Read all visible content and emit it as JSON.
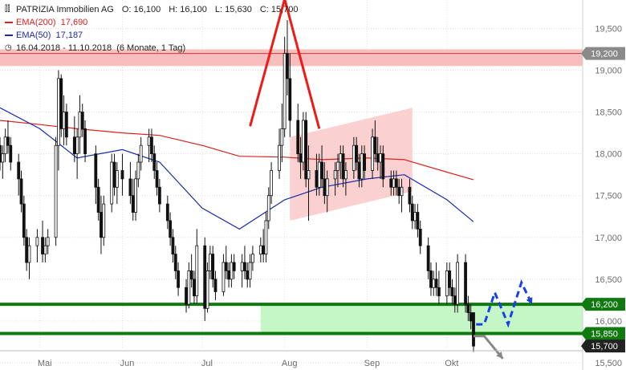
{
  "header": {
    "symbol": "PATRIZIA Immobilien AG",
    "ohlc": [
      {
        "label": "O:",
        "value": "16,100"
      },
      {
        "label": "H:",
        "value": "16,100"
      },
      {
        "label": "L:",
        "value": "15,630"
      },
      {
        "label": "C:",
        "value": "15,700"
      }
    ],
    "range": "16.04.2018 - 11.10.2018",
    "period": "(6 Monate, 1 Tag)"
  },
  "colors": {
    "ema200": "#dd2020",
    "ema50": "#1a2aaa",
    "support_line": "#107a10",
    "support_zone": "#bff5bf",
    "resistance_zone": "#f7b6b6",
    "channel": "#f9c8c8",
    "pattern": "#ee1a1a",
    "forecast_up": "#1740e8",
    "forecast_down": "#888888",
    "label_dark": "#222222",
    "label_green": "#107a10",
    "label_gray": "#8a8a8a"
  },
  "chart_data": {
    "type": "candlestick",
    "title": "PATRIZIA Immobilien AG",
    "x_range": [
      "2018-04-16",
      "2018-10-11"
    ],
    "ylim": [
      15500,
      19800
    ],
    "y_ticks": [
      "15,500",
      "16,000",
      "16,500",
      "17,000",
      "17,500",
      "18,000",
      "18,500",
      "19,000",
      "19,500"
    ],
    "x_labels": [
      {
        "date": "2018-05-01",
        "label": "Mai"
      },
      {
        "date": "2018-06-01",
        "label": "Jun"
      },
      {
        "date": "2018-07-01",
        "label": "Jul"
      },
      {
        "date": "2018-08-01",
        "label": "Aug"
      },
      {
        "date": "2018-09-01",
        "label": "Sep"
      },
      {
        "date": "2018-10-01",
        "label": "Okt"
      }
    ],
    "series": [
      {
        "name": "EMA(200)",
        "value_label": "17,690",
        "key": "ema200",
        "points": [
          [
            "2018-04-16",
            18400
          ],
          [
            "2018-05-01",
            18350
          ],
          [
            "2018-05-15",
            18300
          ],
          [
            "2018-06-01",
            18250
          ],
          [
            "2018-06-15",
            18220
          ],
          [
            "2018-07-01",
            18100
          ],
          [
            "2018-07-15",
            17970
          ],
          [
            "2018-08-01",
            17960
          ],
          [
            "2018-08-15",
            17930
          ],
          [
            "2018-09-01",
            17950
          ],
          [
            "2018-09-15",
            17930
          ],
          [
            "2018-10-01",
            17780
          ],
          [
            "2018-10-11",
            17690
          ]
        ]
      },
      {
        "name": "EMA(50)",
        "value_label": "17,187",
        "key": "ema50",
        "points": [
          [
            "2018-04-16",
            18550
          ],
          [
            "2018-05-01",
            18300
          ],
          [
            "2018-05-15",
            17950
          ],
          [
            "2018-06-01",
            18050
          ],
          [
            "2018-06-15",
            17900
          ],
          [
            "2018-07-01",
            17350
          ],
          [
            "2018-07-15",
            17100
          ],
          [
            "2018-08-01",
            17450
          ],
          [
            "2018-08-15",
            17600
          ],
          [
            "2018-09-01",
            17700
          ],
          [
            "2018-09-15",
            17750
          ],
          [
            "2018-10-01",
            17450
          ],
          [
            "2018-10-11",
            17187
          ]
        ]
      }
    ],
    "candles": [
      [
        "2018-04-16",
        18100,
        18200,
        17800,
        17900
      ],
      [
        "2018-04-17",
        17900,
        18100,
        17700,
        18000
      ],
      [
        "2018-04-18",
        18000,
        18300,
        17900,
        18200
      ],
      [
        "2018-04-19",
        18200,
        18400,
        18000,
        18100
      ],
      [
        "2018-04-20",
        18100,
        18200,
        17800,
        17900
      ],
      [
        "2018-04-23",
        17900,
        18000,
        17500,
        17700
      ],
      [
        "2018-04-24",
        17700,
        17800,
        17300,
        17400
      ],
      [
        "2018-04-25",
        17400,
        17500,
        16900,
        17000
      ],
      [
        "2018-04-26",
        17000,
        17100,
        16600,
        16700
      ],
      [
        "2018-04-27",
        16700,
        17000,
        16500,
        16900
      ],
      [
        "2018-04-30",
        16900,
        17100,
        16700,
        17000
      ],
      [
        "2018-05-02",
        17000,
        17200,
        16700,
        16800
      ],
      [
        "2018-05-03",
        16800,
        17000,
        16700,
        16900
      ],
      [
        "2018-05-04",
        16900,
        17100,
        16800,
        17000
      ],
      [
        "2018-05-07",
        17000,
        18200,
        16900,
        18100
      ],
      [
        "2018-05-08",
        18100,
        19000,
        17800,
        18900
      ],
      [
        "2018-05-09",
        18900,
        18950,
        18200,
        18300
      ],
      [
        "2018-05-10",
        18300,
        18700,
        18100,
        18500
      ],
      [
        "2018-05-11",
        18500,
        18600,
        18100,
        18200
      ],
      [
        "2018-05-14",
        18200,
        18450,
        17900,
        18000
      ],
      [
        "2018-05-15",
        18000,
        18300,
        17700,
        18200
      ],
      [
        "2018-05-16",
        18200,
        18700,
        18000,
        18500
      ],
      [
        "2018-05-17",
        18500,
        18600,
        18200,
        18300
      ],
      [
        "2018-05-18",
        18300,
        18400,
        17900,
        18000
      ],
      [
        "2018-05-22",
        18000,
        18100,
        17400,
        17600
      ],
      [
        "2018-05-23",
        17600,
        17700,
        17200,
        17300
      ],
      [
        "2018-05-24",
        17300,
        17500,
        16800,
        17000
      ],
      [
        "2018-05-25",
        17000,
        17500,
        16900,
        17400
      ],
      [
        "2018-05-28",
        17400,
        18000,
        17300,
        17900
      ],
      [
        "2018-05-29",
        17900,
        18000,
        17500,
        17600
      ],
      [
        "2018-05-30",
        17600,
        17900,
        17400,
        17800
      ],
      [
        "2018-06-01",
        17800,
        18000,
        17500,
        17700
      ],
      [
        "2018-06-04",
        17700,
        17900,
        17400,
        17500
      ],
      [
        "2018-06-05",
        17500,
        17700,
        17200,
        17300
      ],
      [
        "2018-06-06",
        17300,
        17800,
        17200,
        17700
      ],
      [
        "2018-06-07",
        17700,
        18000,
        17600,
        17900
      ],
      [
        "2018-06-08",
        17900,
        18200,
        17800,
        18100
      ],
      [
        "2018-06-11",
        18100,
        18300,
        17900,
        18200
      ],
      [
        "2018-06-12",
        18200,
        18300,
        17900,
        18000
      ],
      [
        "2018-06-13",
        18000,
        18100,
        17700,
        17800
      ],
      [
        "2018-06-14",
        17800,
        17900,
        17500,
        17600
      ],
      [
        "2018-06-15",
        17600,
        17700,
        17300,
        17400
      ],
      [
        "2018-06-18",
        17400,
        17500,
        17100,
        17200
      ],
      [
        "2018-06-19",
        17200,
        17300,
        16900,
        17000
      ],
      [
        "2018-06-20",
        17000,
        17100,
        16700,
        16800
      ],
      [
        "2018-06-21",
        16800,
        16900,
        16500,
        16600
      ],
      [
        "2018-06-22",
        16600,
        16700,
        16300,
        16400
      ],
      [
        "2018-06-25",
        16400,
        16500,
        16100,
        16200
      ],
      [
        "2018-06-26",
        16200,
        16700,
        16150,
        16600
      ],
      [
        "2018-06-27",
        16600,
        16800,
        16400,
        16500
      ],
      [
        "2018-06-28",
        16500,
        16600,
        16200,
        16300
      ],
      [
        "2018-06-29",
        16300,
        17100,
        16200,
        16900
      ],
      [
        "2018-07-02",
        16900,
        17000,
        16000,
        16150
      ],
      [
        "2018-07-03",
        16150,
        16700,
        16100,
        16600
      ],
      [
        "2018-07-04",
        16600,
        16900,
        16500,
        16800
      ],
      [
        "2018-07-05",
        16800,
        16900,
        16400,
        16500
      ],
      [
        "2018-07-06",
        16500,
        16600,
        16250,
        16350
      ],
      [
        "2018-07-09",
        16350,
        16800,
        16300,
        16700
      ],
      [
        "2018-07-10",
        16700,
        16900,
        16500,
        16600
      ],
      [
        "2018-07-11",
        16600,
        16700,
        16400,
        16500
      ],
      [
        "2018-07-12",
        16500,
        16800,
        16400,
        16700
      ],
      [
        "2018-07-13",
        16700,
        16800,
        16500,
        16600
      ],
      [
        "2018-07-16",
        16600,
        16800,
        16400,
        16700
      ],
      [
        "2018-07-17",
        16700,
        16900,
        16500,
        16600
      ],
      [
        "2018-07-18",
        16600,
        16700,
        16400,
        16500
      ],
      [
        "2018-07-19",
        16500,
        16800,
        16400,
        16700
      ],
      [
        "2018-07-20",
        16700,
        16900,
        16600,
        16800
      ],
      [
        "2018-07-23",
        16800,
        17000,
        16700,
        16900
      ],
      [
        "2018-07-24",
        16900,
        17100,
        16700,
        16800
      ],
      [
        "2018-07-25",
        16800,
        17300,
        16700,
        17200
      ],
      [
        "2018-07-26",
        17200,
        17600,
        17100,
        17500
      ],
      [
        "2018-07-27",
        17500,
        17900,
        17400,
        17800
      ],
      [
        "2018-07-30",
        17800,
        18300,
        17700,
        18100
      ],
      [
        "2018-07-31",
        18100,
        18600,
        17900,
        18300
      ],
      [
        "2018-08-01",
        18300,
        19400,
        18200,
        19200
      ],
      [
        "2018-08-02",
        19200,
        19600,
        18700,
        18900
      ],
      [
        "2018-08-03",
        18900,
        19200,
        18200,
        18400
      ],
      [
        "2018-08-06",
        18400,
        18600,
        17900,
        18000
      ],
      [
        "2018-08-07",
        18000,
        18200,
        17700,
        17900
      ],
      [
        "2018-08-08",
        17900,
        18500,
        17800,
        18400
      ],
      [
        "2018-08-09",
        18400,
        18500,
        17600,
        17700
      ],
      [
        "2018-08-10",
        17700,
        18100,
        17200,
        17800
      ],
      [
        "2018-08-13",
        17800,
        18000,
        17500,
        17600
      ],
      [
        "2018-08-14",
        17600,
        18000,
        17500,
        17900
      ],
      [
        "2018-08-15",
        17900,
        18100,
        17600,
        17700
      ],
      [
        "2018-08-16",
        17700,
        17900,
        17400,
        17500
      ],
      [
        "2018-08-17",
        17500,
        17800,
        17300,
        17700
      ],
      [
        "2018-08-20",
        17700,
        17900,
        17500,
        17800
      ],
      [
        "2018-08-21",
        17800,
        18000,
        17600,
        17900
      ],
      [
        "2018-08-22",
        17900,
        18100,
        17700,
        18000
      ],
      [
        "2018-08-23",
        18000,
        18100,
        17600,
        17700
      ],
      [
        "2018-08-24",
        17700,
        17900,
        17500,
        17800
      ],
      [
        "2018-08-27",
        17800,
        18200,
        17700,
        18100
      ],
      [
        "2018-08-28",
        18100,
        18200,
        17800,
        17900
      ],
      [
        "2018-08-29",
        17900,
        18000,
        17600,
        17700
      ],
      [
        "2018-08-30",
        17700,
        18100,
        17600,
        18000
      ],
      [
        "2018-08-31",
        18000,
        18100,
        17700,
        17800
      ],
      [
        "2018-09-03",
        17800,
        18300,
        17700,
        18200
      ],
      [
        "2018-09-04",
        18200,
        18400,
        17900,
        18000
      ],
      [
        "2018-09-05",
        18000,
        18200,
        17800,
        17900
      ],
      [
        "2018-09-06",
        17900,
        18100,
        17700,
        18000
      ],
      [
        "2018-09-07",
        18000,
        18100,
        17600,
        17700
      ],
      [
        "2018-09-10",
        17700,
        17800,
        17500,
        17600
      ],
      [
        "2018-09-11",
        17600,
        17800,
        17500,
        17700
      ],
      [
        "2018-09-12",
        17700,
        17800,
        17500,
        17600
      ],
      [
        "2018-09-13",
        17600,
        17700,
        17400,
        17500
      ],
      [
        "2018-09-14",
        17500,
        17700,
        17300,
        17600
      ],
      [
        "2018-09-17",
        17600,
        17700,
        17300,
        17400
      ],
      [
        "2018-09-18",
        17400,
        17500,
        17100,
        17200
      ],
      [
        "2018-09-19",
        17200,
        17400,
        17100,
        17300
      ],
      [
        "2018-09-20",
        17300,
        17400,
        17000,
        17100
      ],
      [
        "2018-09-21",
        17100,
        17200,
        16800,
        16900
      ],
      [
        "2018-09-24",
        16900,
        17000,
        16500,
        16600
      ],
      [
        "2018-09-25",
        16600,
        16700,
        16300,
        16400
      ],
      [
        "2018-09-26",
        16400,
        16600,
        16300,
        16500
      ],
      [
        "2018-09-27",
        16500,
        16700,
        16300,
        16400
      ],
      [
        "2018-09-28",
        16400,
        16600,
        16200,
        16300
      ],
      [
        "2018-10-01",
        16300,
        16700,
        16200,
        16600
      ],
      [
        "2018-10-02",
        16600,
        16700,
        16300,
        16400
      ],
      [
        "2018-10-03",
        16400,
        16500,
        16200,
        16300
      ],
      [
        "2018-10-04",
        16300,
        16400,
        16100,
        16200
      ],
      [
        "2018-10-05",
        16200,
        16800,
        16100,
        16700
      ],
      [
        "2018-10-08",
        16700,
        16800,
        16100,
        16200
      ],
      [
        "2018-10-09",
        16200,
        16300,
        16000,
        16100
      ],
      [
        "2018-10-10",
        16100,
        16200,
        15900,
        16000
      ],
      [
        "2018-10-11",
        16100,
        16100,
        15630,
        15700
      ]
    ],
    "levels": [
      {
        "value": 19200,
        "label": "19,200",
        "style": "resistance"
      },
      {
        "value": 16200,
        "label": "16,200",
        "style": "support"
      },
      {
        "value": 15850,
        "label": "15,850",
        "style": "support"
      },
      {
        "value": 15700,
        "label": "15,700",
        "style": "last"
      }
    ],
    "zones": [
      {
        "from_date": "2018-04-16",
        "to_date": "2018-10-11",
        "low": 19050,
        "high": 19250,
        "style": "resistance"
      },
      {
        "from_date": "2018-07-23",
        "to_date": "2018-10-11",
        "low": 15850,
        "high": 16200,
        "style": "support"
      }
    ],
    "channel": {
      "start": "2018-08-03",
      "end": "2018-09-18",
      "start_low": 17200,
      "start_high": 18200,
      "end_low": 17550,
      "end_high": 18550
    },
    "pattern_lines": [
      [
        [
          "2018-07-19",
          18330
        ],
        [
          "2018-08-01",
          19850
        ],
        [
          "2018-08-14",
          18300
        ]
      ]
    ],
    "forecast_paths": [
      {
        "style": "up",
        "points": [
          [
            "2018-10-12",
            15960
          ],
          [
            "2018-10-15",
            15960
          ],
          [
            "2018-10-19",
            16340
          ],
          [
            "2018-10-24",
            15960
          ],
          [
            "2018-10-29",
            16460
          ],
          [
            "2018-11-02",
            16200
          ]
        ]
      },
      {
        "style": "down",
        "points": [
          [
            "2018-10-11",
            15820
          ],
          [
            "2018-10-15",
            15820
          ],
          [
            "2018-10-22",
            15550
          ]
        ]
      }
    ]
  }
}
